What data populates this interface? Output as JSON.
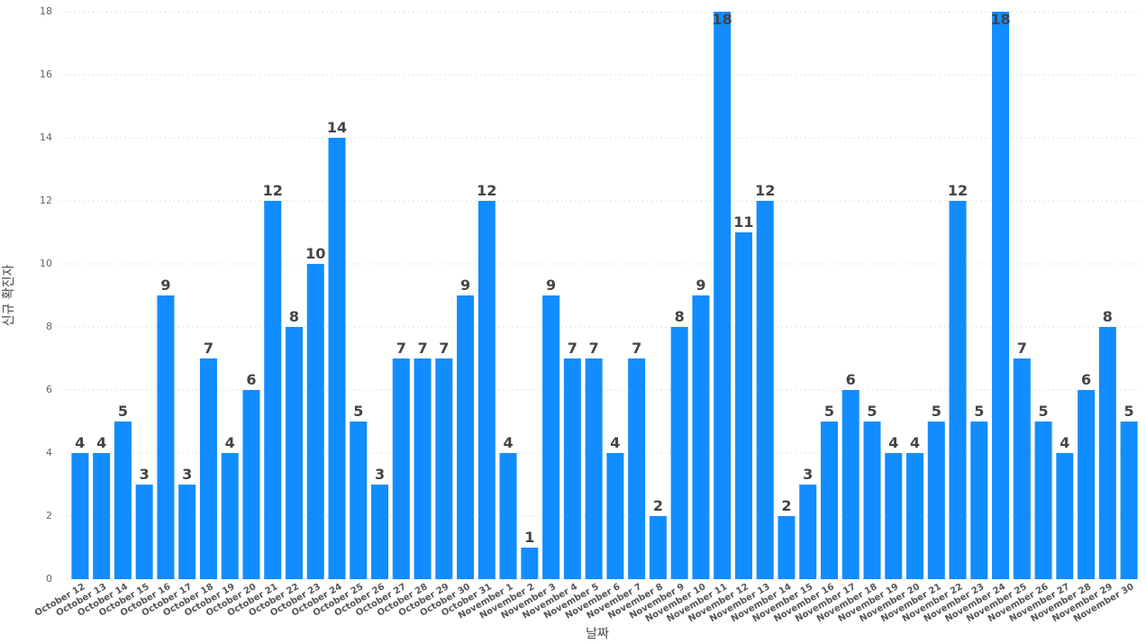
{
  "chart_data": {
    "type": "bar",
    "x_label": "날짜",
    "y_label": "신규 확진자",
    "categories": [
      "October 12",
      "October 13",
      "October 14",
      "October 15",
      "October 16",
      "October 17",
      "October 18",
      "October 19",
      "October 20",
      "October 21",
      "October 22",
      "October 23",
      "October 24",
      "October 25",
      "October 26",
      "October 27",
      "October 28",
      "October 29",
      "October 30",
      "October 31",
      "November 1",
      "November 2",
      "November 3",
      "November 4",
      "November 5",
      "November 6",
      "November 7",
      "November 8",
      "November 9",
      "November 10",
      "November 11",
      "November 12",
      "November 13",
      "November 14",
      "November 15",
      "November 16",
      "November 17",
      "November 18",
      "November 19",
      "November 20",
      "November 21",
      "November 22",
      "November 23",
      "November 24",
      "November 25",
      "November 26",
      "November 27",
      "November 28",
      "November 29",
      "November 30"
    ],
    "values": [
      4,
      4,
      5,
      3,
      9,
      3,
      7,
      4,
      6,
      12,
      8,
      10,
      14,
      5,
      3,
      7,
      7,
      7,
      9,
      12,
      4,
      1,
      9,
      7,
      7,
      4,
      7,
      2,
      8,
      9,
      18,
      11,
      12,
      2,
      3,
      5,
      6,
      5,
      4,
      4,
      5,
      12,
      5,
      18,
      7,
      5,
      4,
      6,
      8,
      5
    ],
    "color": "#118dff",
    "ylim": [
      0,
      18
    ],
    "yticks": [
      0,
      2,
      4,
      6,
      8,
      10,
      12,
      14,
      16,
      18
    ],
    "grid": true
  }
}
